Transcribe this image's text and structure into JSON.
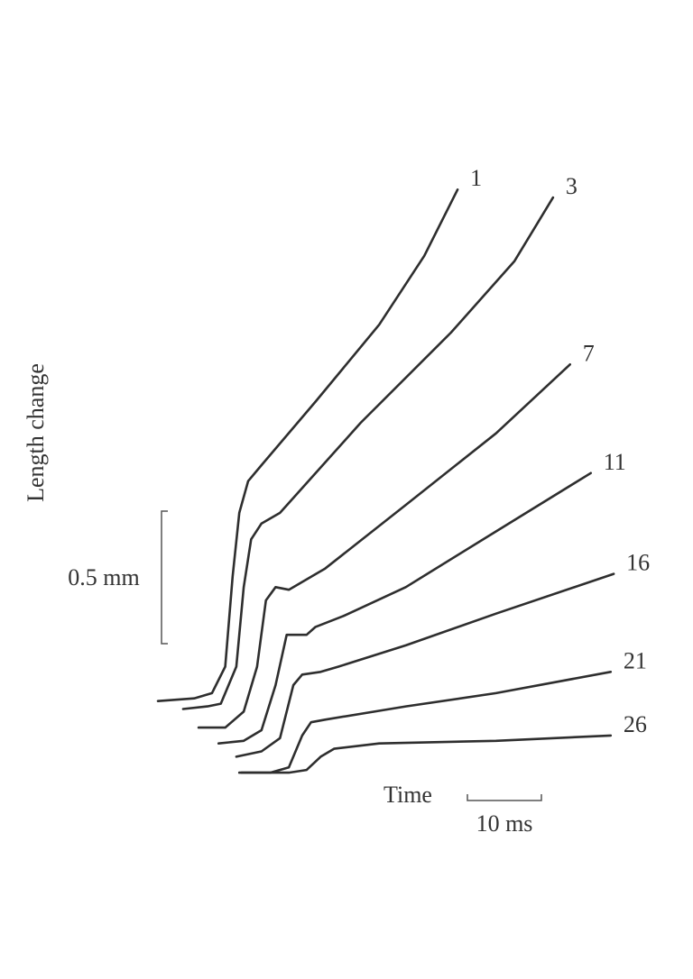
{
  "chart_data": {
    "type": "line",
    "y_label": "Length change",
    "x_label": "Time",
    "color": "#2e2e2e",
    "scale_bars": {
      "y": {
        "value": 0.5,
        "label": "0.5 mm"
      },
      "x": {
        "value": 10,
        "label": "10 ms"
      }
    },
    "series": [
      {
        "name": "1",
        "x": [
          0,
          4.9,
          7.3,
          9.1,
          10.1,
          11.0,
          12.2,
          14.0,
          21.3,
          29.9,
          36.0,
          40.5
        ],
        "values": [
          0.28,
          0.29,
          0.31,
          0.41,
          0.75,
          0.99,
          1.11,
          1.17,
          1.41,
          1.7,
          1.96,
          2.21
        ]
      },
      {
        "name": "3",
        "x": [
          3.4,
          6.7,
          8.5,
          10.6,
          11.6,
          12.6,
          14.0,
          16.5,
          27.4,
          39.6,
          48.2,
          53.4
        ],
        "values": [
          0.25,
          0.26,
          0.27,
          0.41,
          0.71,
          0.89,
          0.95,
          0.99,
          1.33,
          1.67,
          1.94,
          2.18
        ]
      },
      {
        "name": "7",
        "x": [
          5.5,
          9.1,
          11.6,
          13.4,
          14.6,
          15.9,
          17.7,
          22.6,
          33.5,
          45.7,
          55.7
        ],
        "values": [
          0.18,
          0.18,
          0.24,
          0.41,
          0.66,
          0.71,
          0.7,
          0.78,
          1.02,
          1.29,
          1.55
        ]
      },
      {
        "name": "11",
        "x": [
          8.2,
          11.6,
          14.0,
          15.9,
          17.4,
          18.9,
          20.1,
          21.3,
          25.0,
          33.5,
          45.7,
          58.5
        ],
        "values": [
          0.12,
          0.13,
          0.17,
          0.34,
          0.53,
          0.53,
          0.53,
          0.56,
          0.6,
          0.71,
          0.92,
          1.14
        ]
      },
      {
        "name": "16",
        "x": [
          10.6,
          14.0,
          16.5,
          18.3,
          19.5,
          22.0,
          24.4,
          33.5,
          45.7,
          61.6
        ],
        "values": [
          0.07,
          0.09,
          0.14,
          0.34,
          0.38,
          0.39,
          0.41,
          0.49,
          0.61,
          0.76
        ]
      },
      {
        "name": "21",
        "x": [
          11.0,
          15.2,
          17.7,
          19.5,
          20.7,
          22.6,
          33.5,
          45.7,
          61.2
        ],
        "values": [
          0.01,
          0.01,
          0.03,
          0.15,
          0.2,
          0.21,
          0.26,
          0.31,
          0.39
        ]
      },
      {
        "name": "26",
        "x": [
          11.3,
          17.7,
          20.1,
          22.0,
          23.8,
          29.9,
          45.7,
          61.2
        ],
        "values": [
          0.01,
          0.01,
          0.02,
          0.07,
          0.1,
          0.12,
          0.13,
          0.15
        ]
      }
    ]
  }
}
